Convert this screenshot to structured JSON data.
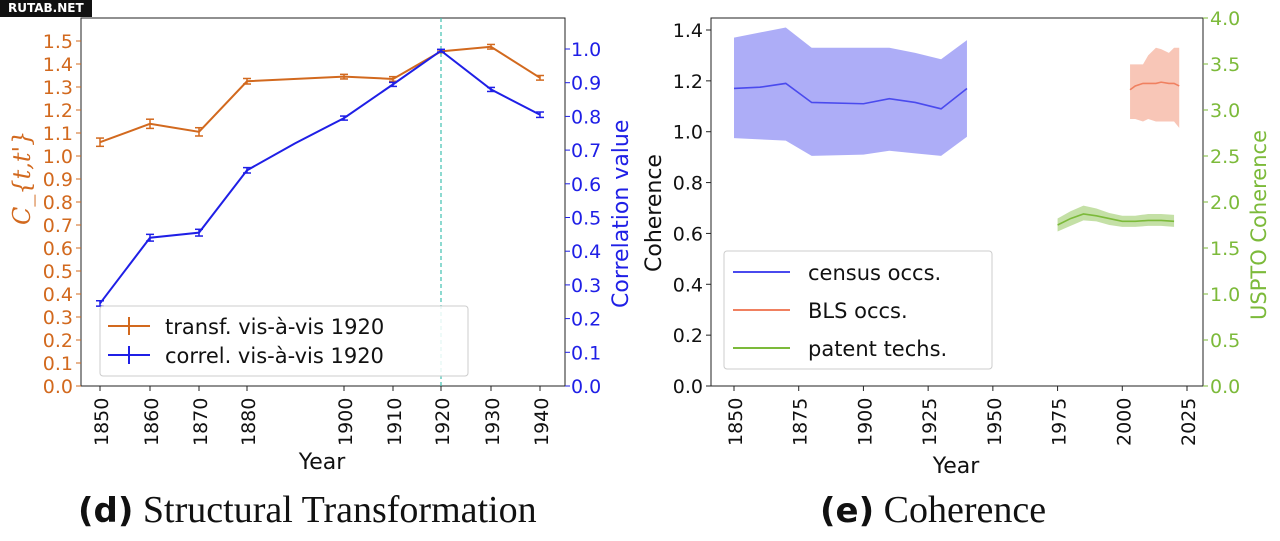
{
  "watermark": "RUTAB.NET",
  "captions": {
    "d": {
      "label": "(d)",
      "text": "Structural Transformation"
    },
    "e": {
      "label": "(e)",
      "text": "Coherence"
    }
  },
  "colors": {
    "orange": "#d2691e",
    "blue": "#1f1fe6",
    "green": "#7cba3a",
    "salmon": "#f08060",
    "dashed_line": "#40c0b0"
  },
  "chart_data": [
    {
      "id": "d",
      "type": "line",
      "xlabel": "Year",
      "ylabel_left": "C_{t,t'}",
      "ylabel_right": "Correlation value",
      "x_ticks": [
        1850,
        1860,
        1870,
        1880,
        1900,
        1910,
        1920,
        1930,
        1940
      ],
      "ylim_left": [
        0,
        1.55
      ],
      "yticks_left": [
        "0.0",
        "0.1",
        "0.2",
        "0.3",
        "0.4",
        "0.5",
        "0.6",
        "0.7",
        "0.8",
        "0.9",
        "1.0",
        "1.1",
        "1.2",
        "1.3",
        "1.4",
        "1.5"
      ],
      "ylim_right": [
        0,
        1.06
      ],
      "yticks_right": [
        "0.0",
        "0.1",
        "0.2",
        "0.3",
        "0.4",
        "0.5",
        "0.6",
        "0.7",
        "0.8",
        "0.9",
        "1.0"
      ],
      "vline_x": 1920,
      "legend_position": "lower-center",
      "series": [
        {
          "name": "transf. vis-à-vis 1920",
          "axis": "left",
          "color": "#d2691e",
          "x": [
            1850,
            1860,
            1870,
            1880,
            1900,
            1910,
            1920,
            1930,
            1940
          ],
          "y": [
            1.06,
            1.14,
            1.105,
            1.325,
            1.345,
            1.335,
            1.455,
            1.475,
            1.34
          ],
          "err": [
            0.018,
            0.02,
            0.018,
            0.012,
            0.01,
            0.01,
            0.006,
            0.01,
            0.01
          ]
        },
        {
          "name": "correl. vis-à-vis 1920",
          "axis": "right",
          "color": "#1f1fe6",
          "x": [
            1850,
            1860,
            1870,
            1880,
            1890,
            1900,
            1910,
            1920,
            1930,
            1940
          ],
          "y": [
            0.245,
            0.44,
            0.455,
            0.64,
            0.72,
            0.795,
            0.895,
            0.995,
            0.88,
            0.805
          ],
          "err": [
            0.008,
            0.01,
            0.01,
            0.008,
            0.0,
            0.006,
            0.006,
            0.004,
            0.006,
            0.008
          ]
        }
      ]
    },
    {
      "id": "e",
      "type": "area",
      "xlabel": "Year",
      "ylabel_left": "Coherence",
      "ylabel_right": "USPTO Coherence",
      "x_ticks": [
        1850,
        1875,
        1900,
        1925,
        1950,
        1975,
        2000,
        2025
      ],
      "ylim_left": [
        0,
        1.45
      ],
      "yticks_left": [
        "0.0",
        "0.2",
        "0.4",
        "0.6",
        "0.8",
        "1.0",
        "1.2",
        "1.4"
      ],
      "ylim_right": [
        0,
        4.0
      ],
      "yticks_right": [
        "0.0",
        "0.5",
        "1.0",
        "1.5",
        "2.0",
        "2.5",
        "3.0",
        "3.5",
        "4.0"
      ],
      "legend_position": "lower-left",
      "series": [
        {
          "name": "census occs.",
          "axis": "left",
          "color": "#4a4aee",
          "x": [
            1850,
            1860,
            1870,
            1880,
            1900,
            1910,
            1920,
            1930,
            1940
          ],
          "y": [
            1.17,
            1.175,
            1.19,
            1.115,
            1.11,
            1.13,
            1.115,
            1.09,
            1.17
          ],
          "lower": [
            0.975,
            0.97,
            0.965,
            0.905,
            0.91,
            0.925,
            0.915,
            0.905,
            0.98
          ],
          "upper": [
            1.37,
            1.39,
            1.41,
            1.33,
            1.33,
            1.33,
            1.31,
            1.285,
            1.36
          ]
        },
        {
          "name": "BLS occs.",
          "axis": "left",
          "color": "#f08060",
          "x": [
            2003,
            2005,
            2008,
            2010,
            2013,
            2015,
            2018,
            2020,
            2022
          ],
          "y": [
            1.165,
            1.18,
            1.19,
            1.19,
            1.19,
            1.195,
            1.19,
            1.19,
            1.18
          ],
          "lower": [
            1.05,
            1.05,
            1.04,
            1.05,
            1.04,
            1.04,
            1.04,
            1.04,
            1.015
          ],
          "upper": [
            1.265,
            1.265,
            1.265,
            1.3,
            1.33,
            1.325,
            1.31,
            1.33,
            1.33
          ]
        },
        {
          "name": "patent techs.",
          "axis": "right",
          "color": "#7cba3a",
          "x": [
            1975,
            1980,
            1985,
            1990,
            1995,
            2000,
            2005,
            2010,
            2015,
            2020
          ],
          "y": [
            1.75,
            1.82,
            1.87,
            1.85,
            1.82,
            1.79,
            1.79,
            1.8,
            1.8,
            1.79
          ],
          "lower": [
            1.68,
            1.74,
            1.8,
            1.79,
            1.75,
            1.73,
            1.73,
            1.74,
            1.74,
            1.73
          ],
          "upper": [
            1.82,
            1.9,
            1.96,
            1.93,
            1.88,
            1.85,
            1.85,
            1.87,
            1.87,
            1.86
          ]
        }
      ]
    }
  ]
}
